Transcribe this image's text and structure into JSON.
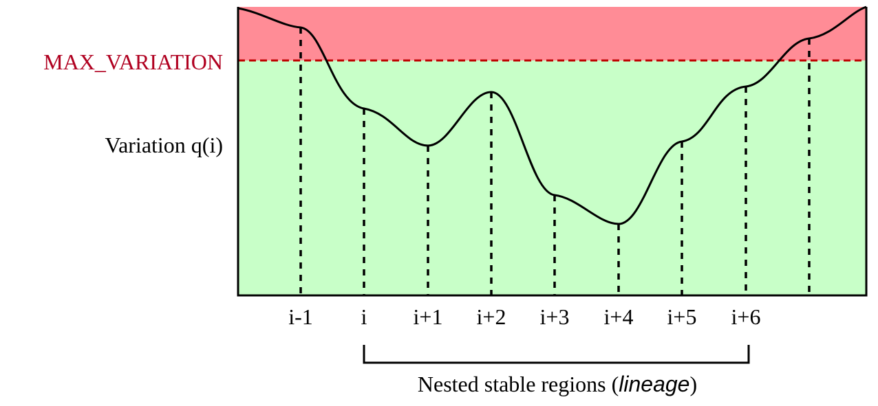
{
  "labels": {
    "max_variation": "MAX_VARIATION",
    "variation": "Variation q(i)",
    "bracket_prefix": "Nested stable regions (",
    "bracket_italic": "lineage",
    "bracket_suffix": ")"
  },
  "ticks": [
    "i-1",
    "i",
    "i+1",
    "i+2",
    "i+3",
    "i+4",
    "i+5",
    "i+6"
  ],
  "colors": {
    "above_threshold": "#ff8c96",
    "below_threshold": "#c8ffc8",
    "threshold_line": "#c00000",
    "max_label": "#b00020",
    "curve": "#000000"
  }
}
